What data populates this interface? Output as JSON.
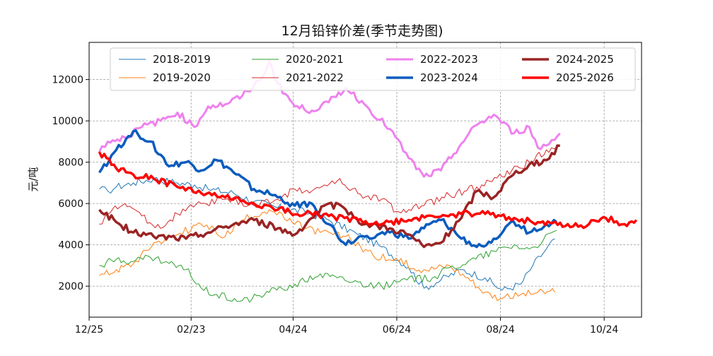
{
  "chart_data": {
    "type": "line",
    "title": "12月铅锌价差(季节走势图)",
    "ylabel": "元/吨",
    "xlabel": "",
    "x_range": [
      "2024-12-25",
      "2025-11-15"
    ],
    "ylim": [
      500,
      13800
    ],
    "x_ticks": [
      {
        "date": "2024-12-25",
        "label": "12/25"
      },
      {
        "date": "2025-02-23",
        "label": "02/23"
      },
      {
        "date": "2025-04-24",
        "label": "04/24"
      },
      {
        "date": "2025-06-24",
        "label": "06/24"
      },
      {
        "date": "2025-08-24",
        "label": "08/24"
      },
      {
        "date": "2025-10-24",
        "label": "10/24"
      }
    ],
    "y_ticks": [
      2000,
      4000,
      6000,
      8000,
      10000,
      12000
    ],
    "grid": true,
    "legend": "top",
    "series": [
      {
        "name": "2018-2019",
        "color": "#1f77b4",
        "width": 1,
        "points": [
          [
            "2024-12-31",
            6700
          ],
          [
            "2025-01-05",
            6600
          ],
          [
            "2025-01-10",
            6800
          ],
          [
            "2025-01-20",
            7000
          ],
          [
            "2025-02-01",
            7200
          ],
          [
            "2025-02-15",
            7000
          ],
          [
            "2025-02-25",
            6900
          ],
          [
            "2025-03-05",
            6700
          ],
          [
            "2025-03-20",
            6500
          ],
          [
            "2025-04-01",
            6100
          ],
          [
            "2025-04-15",
            5800
          ],
          [
            "2025-05-01",
            5600
          ],
          [
            "2025-05-15",
            5200
          ],
          [
            "2025-06-01",
            4500
          ],
          [
            "2025-06-15",
            3900
          ],
          [
            "2025-07-01",
            2900
          ],
          [
            "2025-07-10",
            1900
          ],
          [
            "2025-07-20",
            2300
          ],
          [
            "2025-08-01",
            2800
          ],
          [
            "2025-08-15",
            2400
          ],
          [
            "2025-08-25",
            1800
          ],
          [
            "2025-09-05",
            2100
          ],
          [
            "2025-09-12",
            3000
          ],
          [
            "2025-09-20",
            3800
          ],
          [
            "2025-09-25",
            4300
          ]
        ]
      },
      {
        "name": "2019-2020",
        "color": "#ff7f0e",
        "width": 1,
        "points": [
          [
            "2024-12-31",
            2500
          ],
          [
            "2025-01-10",
            2800
          ],
          [
            "2025-01-20",
            3100
          ],
          [
            "2025-02-01",
            4100
          ],
          [
            "2025-02-15",
            4500
          ],
          [
            "2025-03-01",
            5000
          ],
          [
            "2025-03-15",
            4400
          ],
          [
            "2025-03-25",
            5200
          ],
          [
            "2025-04-10",
            5700
          ],
          [
            "2025-04-25",
            5000
          ],
          [
            "2025-05-10",
            4600
          ],
          [
            "2025-05-25",
            4400
          ],
          [
            "2025-06-10",
            3500
          ],
          [
            "2025-06-25",
            3200
          ],
          [
            "2025-07-10",
            2800
          ],
          [
            "2025-07-25",
            3000
          ],
          [
            "2025-08-05",
            2400
          ],
          [
            "2025-08-15",
            1700
          ],
          [
            "2025-08-25",
            1400
          ],
          [
            "2025-09-05",
            1600
          ],
          [
            "2025-09-15",
            1700
          ],
          [
            "2025-09-25",
            1700
          ]
        ]
      },
      {
        "name": "2020-2021",
        "color": "#2ca02c",
        "width": 1,
        "points": [
          [
            "2024-12-31",
            3000
          ],
          [
            "2025-01-10",
            3300
          ],
          [
            "2025-01-20",
            3200
          ],
          [
            "2025-01-30",
            3400
          ],
          [
            "2025-02-10",
            3100
          ],
          [
            "2025-02-20",
            2800
          ],
          [
            "2025-03-01",
            1900
          ],
          [
            "2025-03-10",
            1600
          ],
          [
            "2025-03-25",
            1300
          ],
          [
            "2025-04-10",
            1700
          ],
          [
            "2025-04-25",
            2100
          ],
          [
            "2025-05-10",
            2600
          ],
          [
            "2025-05-20",
            2400
          ],
          [
            "2025-06-01",
            2200
          ],
          [
            "2025-06-15",
            2000
          ],
          [
            "2025-06-30",
            2300
          ],
          [
            "2025-07-15",
            2400
          ],
          [
            "2025-07-25",
            2900
          ],
          [
            "2025-08-05",
            3200
          ],
          [
            "2025-08-20",
            3700
          ],
          [
            "2025-09-01",
            4000
          ],
          [
            "2025-09-10",
            3800
          ],
          [
            "2025-09-18",
            4200
          ],
          [
            "2025-09-26",
            4700
          ]
        ]
      },
      {
        "name": "2021-2022",
        "color": "#d62728",
        "width": 1,
        "points": [
          [
            "2024-12-31",
            5000
          ],
          [
            "2025-01-05",
            5500
          ],
          [
            "2025-01-15",
            6000
          ],
          [
            "2025-01-25",
            5400
          ],
          [
            "2025-02-05",
            4800
          ],
          [
            "2025-02-15",
            5500
          ],
          [
            "2025-03-01",
            6000
          ],
          [
            "2025-03-15",
            6200
          ],
          [
            "2025-04-01",
            5900
          ],
          [
            "2025-04-15",
            6200
          ],
          [
            "2025-04-25",
            6700
          ],
          [
            "2025-05-05",
            6600
          ],
          [
            "2025-05-20",
            7100
          ],
          [
            "2025-06-01",
            6500
          ],
          [
            "2025-06-15",
            6200
          ],
          [
            "2025-06-25",
            5600
          ],
          [
            "2025-07-10",
            5900
          ],
          [
            "2025-07-25",
            6400
          ],
          [
            "2025-08-10",
            6800
          ],
          [
            "2025-08-25",
            7300
          ],
          [
            "2025-09-10",
            8000
          ],
          [
            "2025-09-20",
            8600
          ],
          [
            "2025-09-26",
            8700
          ]
        ]
      },
      {
        "name": "2022-2023",
        "color": "#ee82ee",
        "width": 3,
        "points": [
          [
            "2024-12-31",
            8500
          ],
          [
            "2025-01-05",
            9000
          ],
          [
            "2025-01-15",
            9200
          ],
          [
            "2025-01-25",
            9700
          ],
          [
            "2025-02-05",
            10000
          ],
          [
            "2025-02-15",
            10400
          ],
          [
            "2025-02-25",
            9700
          ],
          [
            "2025-03-05",
            10700
          ],
          [
            "2025-03-15",
            10800
          ],
          [
            "2025-03-25",
            11200
          ],
          [
            "2025-04-05",
            12000
          ],
          [
            "2025-04-10",
            12900
          ],
          [
            "2025-04-15",
            11800
          ],
          [
            "2025-04-25",
            10700
          ],
          [
            "2025-05-05",
            10500
          ],
          [
            "2025-05-15",
            10900
          ],
          [
            "2025-05-25",
            11600
          ],
          [
            "2025-06-05",
            10800
          ],
          [
            "2025-06-20",
            9600
          ],
          [
            "2025-07-01",
            8200
          ],
          [
            "2025-07-10",
            7300
          ],
          [
            "2025-07-20",
            7600
          ],
          [
            "2025-08-01",
            8900
          ],
          [
            "2025-08-10",
            9800
          ],
          [
            "2025-08-20",
            10300
          ],
          [
            "2025-09-01",
            9400
          ],
          [
            "2025-09-10",
            9700
          ],
          [
            "2025-09-15",
            8700
          ],
          [
            "2025-09-20",
            8800
          ],
          [
            "2025-09-28",
            9400
          ]
        ]
      },
      {
        "name": "2023-2024",
        "color": "#0b5cbd",
        "width": 3.5,
        "points": [
          [
            "2024-12-31",
            7500
          ],
          [
            "2025-01-10",
            8600
          ],
          [
            "2025-01-20",
            9500
          ],
          [
            "2025-01-30",
            9000
          ],
          [
            "2025-02-10",
            7800
          ],
          [
            "2025-02-20",
            8000
          ],
          [
            "2025-03-01",
            7600
          ],
          [
            "2025-03-10",
            8100
          ],
          [
            "2025-03-20",
            7500
          ],
          [
            "2025-04-01",
            6700
          ],
          [
            "2025-04-15",
            6300
          ],
          [
            "2025-04-25",
            5900
          ],
          [
            "2025-05-05",
            6000
          ],
          [
            "2025-05-15",
            5000
          ],
          [
            "2025-05-25",
            4000
          ],
          [
            "2025-06-05",
            4400
          ],
          [
            "2025-06-20",
            4600
          ],
          [
            "2025-07-01",
            4300
          ],
          [
            "2025-07-10",
            4800
          ],
          [
            "2025-07-20",
            5200
          ],
          [
            "2025-08-01",
            4300
          ],
          [
            "2025-08-10",
            3900
          ],
          [
            "2025-08-20",
            4300
          ],
          [
            "2025-08-30",
            5100
          ],
          [
            "2025-09-10",
            4600
          ],
          [
            "2025-09-20",
            5000
          ],
          [
            "2025-09-26",
            5100
          ]
        ]
      },
      {
        "name": "2024-2025",
        "color": "#9a2424",
        "width": 3.5,
        "points": [
          [
            "2024-12-31",
            5700
          ],
          [
            "2025-01-10",
            5100
          ],
          [
            "2025-01-20",
            4600
          ],
          [
            "2025-02-01",
            4400
          ],
          [
            "2025-02-20",
            4300
          ],
          [
            "2025-03-05",
            4600
          ],
          [
            "2025-03-20",
            5000
          ],
          [
            "2025-04-01",
            5200
          ],
          [
            "2025-04-15",
            4800
          ],
          [
            "2025-04-25",
            4500
          ],
          [
            "2025-05-05",
            5300
          ],
          [
            "2025-05-15",
            6000
          ],
          [
            "2025-05-25",
            5700
          ],
          [
            "2025-06-05",
            5000
          ],
          [
            "2025-06-20",
            4800
          ],
          [
            "2025-07-01",
            4500
          ],
          [
            "2025-07-10",
            3900
          ],
          [
            "2025-07-20",
            4100
          ],
          [
            "2025-08-01",
            5300
          ],
          [
            "2025-08-10",
            6600
          ],
          [
            "2025-08-20",
            6300
          ],
          [
            "2025-08-30",
            7300
          ],
          [
            "2025-09-10",
            7900
          ],
          [
            "2025-09-20",
            8100
          ],
          [
            "2025-09-28",
            8800
          ]
        ]
      },
      {
        "name": "2025-2026",
        "color": "#ff0000",
        "width": 3.5,
        "points": [
          [
            "2024-12-31",
            8500
          ],
          [
            "2025-01-10",
            7700
          ],
          [
            "2025-01-20",
            7400
          ],
          [
            "2025-02-01",
            7200
          ],
          [
            "2025-02-15",
            6800
          ],
          [
            "2025-03-01",
            6500
          ],
          [
            "2025-03-15",
            6300
          ],
          [
            "2025-04-01",
            6000
          ],
          [
            "2025-04-15",
            5700
          ],
          [
            "2025-05-01",
            5500
          ],
          [
            "2025-05-15",
            5400
          ],
          [
            "2025-06-01",
            5200
          ],
          [
            "2025-06-15",
            5000
          ],
          [
            "2025-07-01",
            5200
          ],
          [
            "2025-07-15",
            5400
          ],
          [
            "2025-08-01",
            5500
          ],
          [
            "2025-08-15",
            5500
          ],
          [
            "2025-09-01",
            5300
          ],
          [
            "2025-09-15",
            5100
          ],
          [
            "2025-10-01",
            4900
          ],
          [
            "2025-10-15",
            5000
          ],
          [
            "2025-10-25",
            5300
          ],
          [
            "2025-11-05",
            5000
          ],
          [
            "2025-11-12",
            5200
          ]
        ]
      }
    ]
  }
}
